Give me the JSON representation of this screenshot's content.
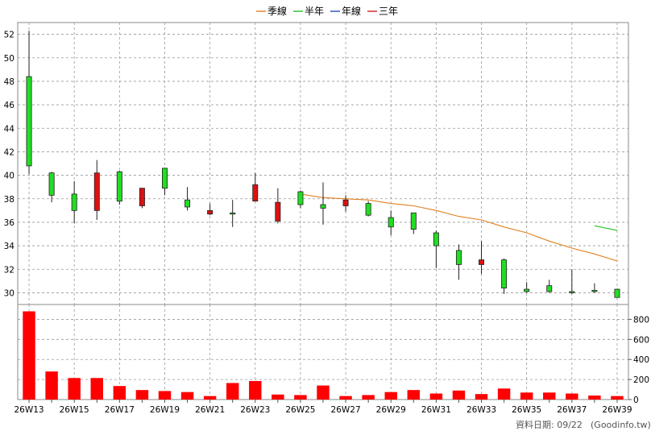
{
  "chart_data": {
    "type": "candlestick",
    "legend": [
      {
        "label": "季線",
        "color": "#e08020"
      },
      {
        "label": "半年",
        "color": "#20c020"
      },
      {
        "label": "年線",
        "color": "#2050c0"
      },
      {
        "label": "三年",
        "color": "#d02020"
      }
    ],
    "x_labels": [
      "26W13",
      "",
      "26W15",
      "",
      "26W17",
      "",
      "26W19",
      "",
      "26W21",
      "",
      "26W23",
      "",
      "26W25",
      "",
      "26W27",
      "",
      "26W29",
      "",
      "26W31",
      "",
      "26W33",
      "",
      "26W35",
      "",
      "26W37",
      "",
      "26W39"
    ],
    "price_axis": {
      "min": 29,
      "max": 53,
      "ticks": [
        30,
        32,
        34,
        36,
        38,
        40,
        42,
        44,
        46,
        48,
        50,
        52
      ]
    },
    "volume_axis": {
      "min": 0,
      "max": 900,
      "ticks": [
        0,
        200,
        400,
        600,
        800
      ]
    },
    "candles": [
      {
        "o": 40.8,
        "h": 52.3,
        "l": 40.1,
        "c": 48.4
      },
      {
        "o": 38.3,
        "h": 40.3,
        "l": 37.7,
        "c": 40.2
      },
      {
        "o": 37.0,
        "h": 39.5,
        "l": 35.9,
        "c": 38.4
      },
      {
        "o": 40.2,
        "h": 41.3,
        "l": 36.2,
        "c": 37.0
      },
      {
        "o": 37.8,
        "h": 40.4,
        "l": 37.5,
        "c": 40.3
      },
      {
        "o": 38.9,
        "h": 38.9,
        "l": 37.2,
        "c": 37.4
      },
      {
        "o": 38.9,
        "h": 40.6,
        "l": 38.3,
        "c": 40.6
      },
      {
        "o": 37.3,
        "h": 39.0,
        "l": 37.0,
        "c": 37.9
      },
      {
        "o": 37.0,
        "h": 37.6,
        "l": 36.6,
        "c": 36.7
      },
      {
        "o": 36.8,
        "h": 37.9,
        "l": 35.6,
        "c": 36.8
      },
      {
        "o": 39.2,
        "h": 40.2,
        "l": 37.8,
        "c": 37.8
      },
      {
        "o": 37.7,
        "h": 38.9,
        "l": 35.9,
        "c": 36.1
      },
      {
        "o": 37.5,
        "h": 38.7,
        "l": 37.2,
        "c": 38.6
      },
      {
        "o": 37.2,
        "h": 39.4,
        "l": 35.8,
        "c": 37.5
      },
      {
        "o": 37.9,
        "h": 38.3,
        "l": 36.9,
        "c": 37.4
      },
      {
        "o": 36.6,
        "h": 37.8,
        "l": 36.5,
        "c": 37.6
      },
      {
        "o": 35.6,
        "h": 37.0,
        "l": 34.9,
        "c": 36.4
      },
      {
        "o": 35.4,
        "h": 36.8,
        "l": 35.0,
        "c": 36.8
      },
      {
        "o": 34.0,
        "h": 35.3,
        "l": 32.1,
        "c": 35.1
      },
      {
        "o": 32.4,
        "h": 34.1,
        "l": 31.1,
        "c": 33.6
      },
      {
        "o": 32.8,
        "h": 34.4,
        "l": 31.6,
        "c": 32.4
      },
      {
        "o": 30.4,
        "h": 32.9,
        "l": 29.9,
        "c": 32.8
      },
      {
        "o": 30.1,
        "h": 30.9,
        "l": 30.0,
        "c": 30.3
      },
      {
        "o": 30.1,
        "h": 31.1,
        "l": 30.0,
        "c": 30.6
      },
      {
        "o": 30.0,
        "h": 32.0,
        "l": 29.9,
        "c": 30.1
      },
      {
        "o": 30.1,
        "h": 30.8,
        "l": 30.0,
        "c": 30.2
      },
      {
        "o": 29.6,
        "h": 30.3,
        "l": 29.6,
        "c": 30.3
      }
    ],
    "volume": [
      880,
      280,
      215,
      215,
      135,
      95,
      85,
      75,
      35,
      165,
      185,
      50,
      45,
      140,
      35,
      45,
      75,
      95,
      60,
      90,
      55,
      110,
      70,
      70,
      60,
      40,
      35
    ],
    "ma_quarter": [
      null,
      null,
      null,
      null,
      null,
      null,
      null,
      null,
      null,
      null,
      null,
      null,
      38.4,
      38.1,
      38.0,
      37.9,
      37.6,
      37.4,
      37.0,
      36.5,
      36.2,
      35.6,
      35.1,
      34.4,
      33.8,
      33.3,
      32.7
    ],
    "ma_half_year": [
      null,
      null,
      null,
      null,
      null,
      null,
      null,
      null,
      null,
      null,
      null,
      null,
      null,
      null,
      null,
      null,
      null,
      null,
      null,
      null,
      null,
      null,
      null,
      null,
      null,
      35.7,
      35.3
    ]
  },
  "footer": "資料日期: 09/22",
  "footer_source": "(Goodinfo.tw)"
}
